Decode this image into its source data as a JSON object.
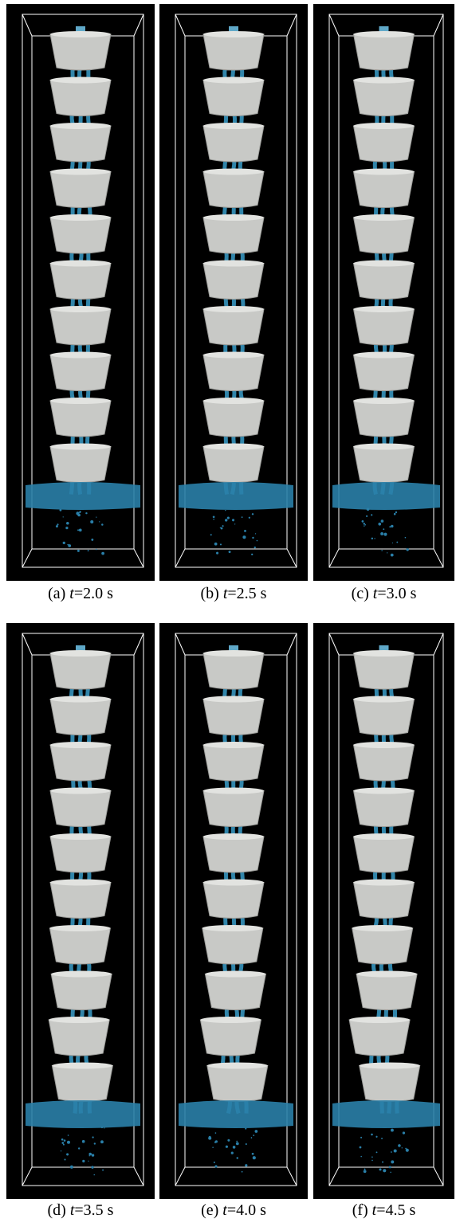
{
  "panels": [
    {
      "label": "(a)",
      "variable": "t",
      "rest": "=2.0 s"
    },
    {
      "label": "(b)",
      "variable": "t",
      "rest": "=2.5 s"
    },
    {
      "label": "(c)",
      "variable": "t",
      "rest": "=3.0 s"
    },
    {
      "label": "(d)",
      "variable": "t",
      "rest": "=3.5 s"
    },
    {
      "label": "(e)",
      "variable": "t",
      "rest": "=4.0 s"
    },
    {
      "label": "(f)",
      "variable": "t",
      "rest": "=4.5 s"
    }
  ]
}
